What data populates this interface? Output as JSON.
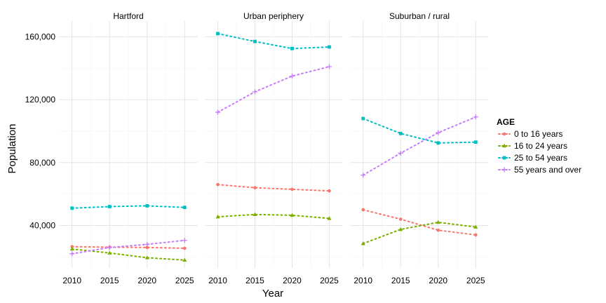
{
  "chart_data": {
    "type": "line",
    "facets": [
      "Hartford",
      "Urban periphery",
      "Suburban / rural"
    ],
    "x": [
      2010,
      2015,
      2020,
      2025
    ],
    "xlabel": "Year",
    "ylabel": "Population",
    "ylim": [
      13000,
      170000
    ],
    "y_ticks": [
      40000,
      80000,
      120000,
      160000
    ],
    "y_tick_labels": [
      "40,000",
      "80,000",
      "120,000",
      "160,000"
    ],
    "x_tick_labels": [
      "2010",
      "2015",
      "2020",
      "2025"
    ],
    "legend": {
      "title": "AGE",
      "position": "right"
    },
    "series": [
      {
        "name": "0 to 16 years",
        "color": "#F8766D",
        "marker": "circle",
        "values": {
          "Hartford": [
            26500,
            26200,
            26000,
            25500
          ],
          "Urban periphery": [
            66000,
            64000,
            63000,
            62000
          ],
          "Suburban / rural": [
            50000,
            44000,
            37000,
            34000
          ]
        }
      },
      {
        "name": "16 to 24 years",
        "color": "#7CAE00",
        "marker": "triangle",
        "values": {
          "Hartford": [
            25000,
            22500,
            19500,
            18000
          ],
          "Urban periphery": [
            45500,
            47000,
            46500,
            44500
          ],
          "Suburban / rural": [
            28500,
            37500,
            42000,
            39000
          ]
        }
      },
      {
        "name": "25 to 54 years",
        "color": "#00BFC4",
        "marker": "square",
        "values": {
          "Hartford": [
            51000,
            52000,
            52500,
            51500
          ],
          "Urban periphery": [
            162000,
            157000,
            152500,
            153500
          ],
          "Suburban / rural": [
            108000,
            98500,
            92500,
            93000
          ]
        }
      },
      {
        "name": "55 years and over",
        "color": "#C77CFF",
        "marker": "plus",
        "values": {
          "Hartford": [
            22000,
            26000,
            28000,
            30500
          ],
          "Urban periphery": [
            112000,
            125000,
            135000,
            141000
          ],
          "Suburban / rural": [
            72000,
            86000,
            99000,
            109000
          ]
        }
      }
    ]
  }
}
